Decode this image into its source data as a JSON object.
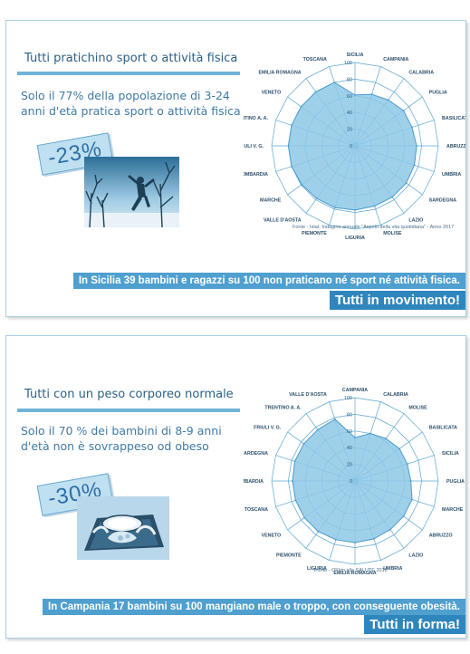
{
  "panels": [
    {
      "title": "Tutti pratichino sport o attività fisica",
      "subtitle": "Solo il 77% della popolazione di 3-24 anni d'età pratica sport o attività fisica",
      "badge": "-23%",
      "source": "Fonte - Istat, Indagine annuale \"Aspetti della vita quotidiana\" - Anno 2017",
      "banner": "In Sicilia 39 bambini e ragazzi su 100 non praticano né sport né attività fisica.",
      "slogan": "Tutti in movimento!"
    },
    {
      "title": "Tutti con un peso corporeo normale",
      "subtitle": "Solo il 70 % dei bambini di 8-9 anni d'età non è sovrappeso od obeso",
      "badge": "-30%",
      "source": "Fonte - OKkio alla SALUTE 2016",
      "banner": "In Campania 17 bambini su 100 mangiano male o troppo, con conseguente obesità.",
      "slogan": "Tutti in forma!"
    }
  ],
  "chart_data": [
    {
      "type": "radar",
      "categories": [
        "SICILIA",
        "CAMPANIA",
        "CALABRIA",
        "PUGLIA",
        "BASILICATA",
        "ABRUZZO",
        "UMBRIA",
        "SARDEGNA",
        "LAZIO",
        "MOLISE",
        "LIGURIA",
        "PIEMONTE",
        "VALLE D'AOSTA",
        "MARCHE",
        "LOMBARDIA",
        "FRIULI V. G.",
        "TRENTINO A. A.",
        "VENETO",
        "EMILIA ROMAGNA",
        "TOSCANA"
      ],
      "values": [
        61,
        65,
        68,
        72,
        72,
        74,
        75,
        76,
        76,
        76,
        77,
        78,
        78,
        79,
        80,
        80,
        80,
        80,
        80,
        80
      ],
      "axis_ticks": [
        0,
        20,
        40,
        60,
        80,
        100
      ],
      "rlim": [
        0,
        100
      ],
      "grid": true,
      "fill_color": "#8ec8e6",
      "line_color": "#4a9ccb"
    },
    {
      "type": "radar",
      "categories": [
        "CAMPANIA",
        "CALABRIA",
        "MOLISE",
        "BASILICATA",
        "SICILIA",
        "PUGLIA",
        "MARCHE",
        "ABRUZZO",
        "LAZIO",
        "UMBRIA",
        "EMILIA ROMAGNA",
        "LIGURIA",
        "PIEMONTE",
        "VENETO",
        "TOSCANA",
        "LOMBARDIA",
        "SARDEGNA",
        "FRIULI V. G.",
        "TRENTINO A. A.",
        "VALLE D'AOSTA"
      ],
      "values": [
        52,
        60,
        63,
        66,
        66,
        67,
        72,
        72,
        72,
        73,
        74,
        74,
        75,
        75,
        75,
        75,
        76,
        76,
        76,
        78
      ],
      "axis_ticks": [
        0,
        20,
        40,
        60,
        80,
        100
      ],
      "rlim": [
        0,
        100
      ],
      "grid": true,
      "fill_color": "#8ec8e6",
      "line_color": "#4a9ccb"
    }
  ],
  "colors": {
    "accent": "#2f86bd",
    "banner": "#4f9fcf",
    "title": "#2b5f86",
    "grid": "#5aa6d4"
  }
}
